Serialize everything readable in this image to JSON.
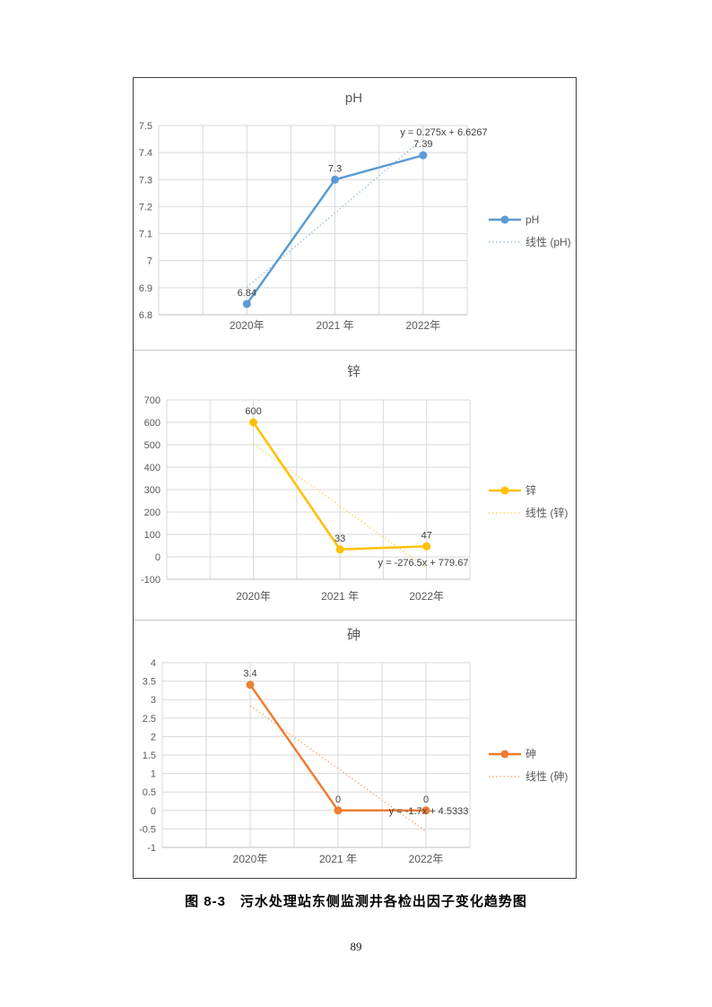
{
  "page": {
    "caption": "图 8-3　污水处理站东侧监测井各检出因子变化趋势图",
    "page_number": "89"
  },
  "theme": {
    "grid_color": "#D9D9D9",
    "axis_color": "#BFBFBF",
    "tick_text_color": "#595959",
    "label_text_color": "#404040",
    "frame_color": "#3F3F3F",
    "divider_color": "#C4C4C4"
  },
  "chart_data": [
    {
      "type": "line",
      "title": "pH",
      "categories": [
        "2020年",
        "2021 年",
        "2022年"
      ],
      "series": [
        {
          "name": "pH",
          "color": "#5B9BD5",
          "values": [
            6.84,
            7.3,
            7.39
          ],
          "data_labels": [
            "6.84",
            "7.3",
            "7.39"
          ]
        }
      ],
      "trendline": {
        "name": "线性 (pH)",
        "color": "#9DC3E6",
        "equation": "y = 0.275x + 6.6267",
        "values": [
          6.9017,
          7.1767,
          7.4517
        ]
      },
      "y_axis": {
        "min": 6.8,
        "max": 7.5,
        "step": 0.1
      },
      "grid": true,
      "legend": {
        "position": "right",
        "entries": [
          "pH",
          "线性 (pH)"
        ]
      }
    },
    {
      "type": "line",
      "title": "锌",
      "categories": [
        "2020年",
        "2021 年",
        "2022年"
      ],
      "series": [
        {
          "name": "锌",
          "color": "#FFC000",
          "values": [
            600,
            33,
            47
          ],
          "data_labels": [
            "600",
            "33",
            "47"
          ]
        }
      ],
      "trendline": {
        "name": "线性 (锌)",
        "color": "#FFD966",
        "equation": "y = -276.5x + 779.67",
        "values": [
          503.17,
          226.67,
          -49.83
        ]
      },
      "y_axis": {
        "min": -100,
        "max": 700,
        "step": 100
      },
      "grid": true,
      "legend": {
        "position": "right",
        "entries": [
          "锌",
          "线性 (锌)"
        ]
      }
    },
    {
      "type": "line",
      "title": "砷",
      "categories": [
        "2020年",
        "2021 年",
        "2022年"
      ],
      "series": [
        {
          "name": "砷",
          "color": "#ED7D31",
          "values": [
            3.4,
            0,
            0
          ],
          "data_labels": [
            "3.4",
            "0",
            "0"
          ]
        }
      ],
      "trendline": {
        "name": "线性 (砷)",
        "color": "#F4B183",
        "equation": "y = -1.7x + 4.5333",
        "values": [
          2.8333,
          1.1333,
          -0.5667
        ]
      },
      "y_axis": {
        "min": -1,
        "max": 4,
        "step": 0.5
      },
      "grid": true,
      "legend": {
        "position": "right",
        "entries": [
          "砷",
          "线性 (砷)"
        ]
      }
    }
  ]
}
